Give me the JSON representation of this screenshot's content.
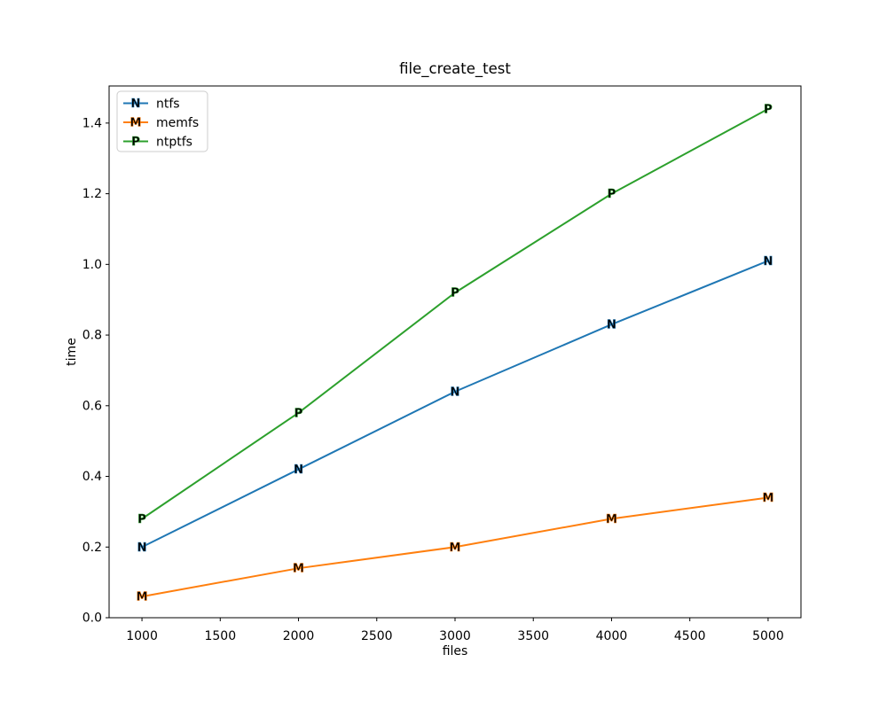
{
  "figure": {
    "background": "#ffffff",
    "spine_color": "#000000",
    "tick_color": "#000000"
  },
  "chart_data": {
    "type": "line",
    "title": "file_create_test",
    "xlabel": "files",
    "ylabel": "time",
    "x": [
      1000,
      2000,
      3000,
      4000,
      5000
    ],
    "series": [
      {
        "name": "ntfs",
        "marker": "N",
        "color": "#1f77b4",
        "values": [
          0.2,
          0.42,
          0.64,
          0.83,
          1.01
        ]
      },
      {
        "name": "memfs",
        "marker": "M",
        "color": "#ff7f0e",
        "values": [
          0.06,
          0.14,
          0.2,
          0.28,
          0.34
        ]
      },
      {
        "name": "ntptfs",
        "marker": "P",
        "color": "#2ca02c",
        "values": [
          0.28,
          0.58,
          0.92,
          1.2,
          1.44
        ]
      }
    ],
    "xlim": [
      790,
      5210
    ],
    "ylim": [
      0,
      1.505
    ],
    "xticks": [
      1000,
      1500,
      2000,
      2500,
      3000,
      3500,
      4000,
      4500,
      5000
    ],
    "yticks": [
      "0.0",
      "0.2",
      "0.4",
      "0.6",
      "0.8",
      "1.0",
      "1.2",
      "1.4"
    ],
    "grid": false,
    "legend": {
      "position": "upper left",
      "border_color": "#cccccc",
      "background": "#ffffff"
    }
  }
}
